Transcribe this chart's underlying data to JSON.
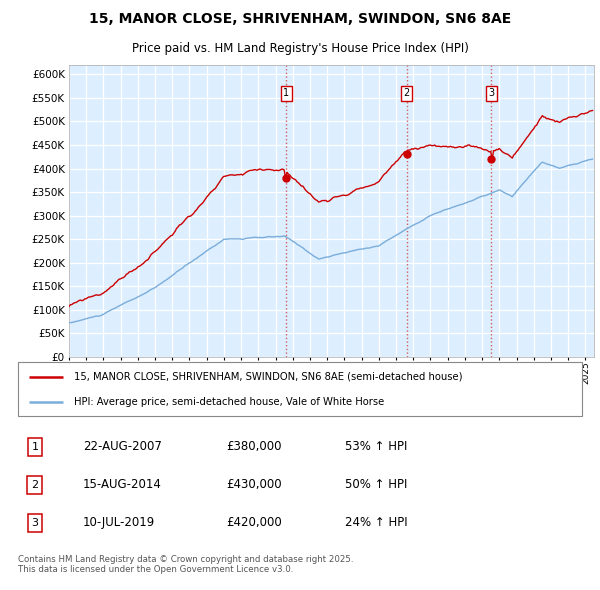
{
  "title": "15, MANOR CLOSE, SHRIVENHAM, SWINDON, SN6 8AE",
  "subtitle": "Price paid vs. HM Land Registry's House Price Index (HPI)",
  "red_label": "15, MANOR CLOSE, SHRIVENHAM, SWINDON, SN6 8AE (semi-detached house)",
  "blue_label": "HPI: Average price, semi-detached house, Vale of White Horse",
  "footer": "Contains HM Land Registry data © Crown copyright and database right 2025.\nThis data is licensed under the Open Government Licence v3.0.",
  "transactions": [
    {
      "num": 1,
      "date": "22-AUG-2007",
      "price": "£380,000",
      "change": "53% ↑ HPI"
    },
    {
      "num": 2,
      "date": "15-AUG-2014",
      "price": "£430,000",
      "change": "50% ↑ HPI"
    },
    {
      "num": 3,
      "date": "10-JUL-2019",
      "price": "£420,000",
      "change": "24% ↑ HPI"
    }
  ],
  "red_color": "#cc0000",
  "blue_color": "#7aadda",
  "vline_color": "#cc0000",
  "plot_bg": "#ddeeff",
  "ylim": [
    0,
    620000
  ],
  "yticks": [
    0,
    50000,
    100000,
    150000,
    200000,
    250000,
    300000,
    350000,
    400000,
    450000,
    500000,
    550000,
    600000
  ],
  "t1": 2007.625,
  "t2": 2014.625,
  "t3": 2019.542,
  "p1": 380000,
  "p2": 430000,
  "p3": 420000
}
